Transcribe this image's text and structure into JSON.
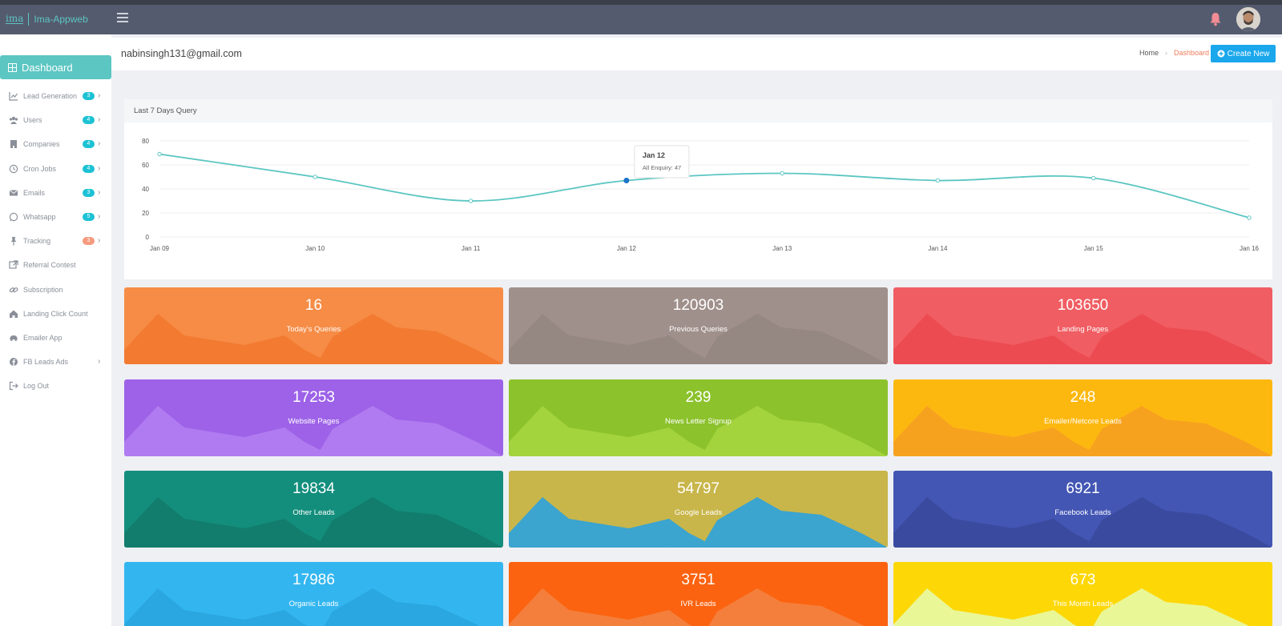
{
  "app": {
    "logo_mark": "ima",
    "name": "Ima-Appweb"
  },
  "header": {
    "icons": [
      "menu-icon",
      "bell-icon",
      "avatar"
    ]
  },
  "sidebar": {
    "dashboard_label": "Dashboard",
    "items": [
      {
        "label": "Lead Generation",
        "icon": "chart-icon",
        "badge": "3",
        "chevron": true
      },
      {
        "label": "Users",
        "icon": "users-icon",
        "badge": "4",
        "chevron": true
      },
      {
        "label": "Companies",
        "icon": "building-icon",
        "badge": "4",
        "chevron": true
      },
      {
        "label": "Cron Jobs",
        "icon": "clock-icon",
        "badge": "4",
        "chevron": true
      },
      {
        "label": "Emails",
        "icon": "envelope-icon",
        "badge": "3",
        "chevron": true
      },
      {
        "label": "Whatsapp",
        "icon": "whatsapp-icon",
        "badge": "5",
        "chevron": true
      },
      {
        "label": "Tracking",
        "icon": "pin-icon",
        "badge": "3",
        "badge_color": "orange",
        "chevron": true
      },
      {
        "label": "Referral Contest",
        "icon": "external-link-icon",
        "badge": "",
        "chevron": false
      },
      {
        "label": "Subscription",
        "icon": "link-icon",
        "badge": "",
        "chevron": false
      },
      {
        "label": "Landing Click Count",
        "icon": "home-icon",
        "badge": "",
        "chevron": false
      },
      {
        "label": "Emailer App",
        "icon": "car-icon",
        "badge": "",
        "chevron": false
      },
      {
        "label": "FB Leads Ads",
        "icon": "facebook-icon",
        "badge": "",
        "chevron": true
      },
      {
        "label": "Log Out",
        "icon": "logout-icon",
        "badge": "",
        "chevron": false
      }
    ]
  },
  "page": {
    "user_email": "nabinsingh131@gmail.com",
    "breadcrumb": {
      "home": "Home",
      "current": "Dashboard"
    },
    "create_label": "Create New"
  },
  "chart_card": {
    "title": "Last 7 Days Query"
  },
  "chart_data": {
    "type": "line",
    "categories": [
      "Jan 09",
      "Jan 10",
      "Jan 11",
      "Jan 12",
      "Jan 13",
      "Jan 14",
      "Jan 15",
      "Jan 16"
    ],
    "series": [
      {
        "name": "All Enquiry",
        "values": [
          69,
          50,
          30,
          47,
          53,
          47,
          49,
          16
        ]
      }
    ],
    "ylim": [
      0,
      80
    ],
    "yticks": [
      0,
      20,
      40,
      60,
      80
    ],
    "grid": true,
    "line_color": "#5cc6c2",
    "tooltip": {
      "title": "Jan 12",
      "text": "All Enquiry: 47"
    }
  },
  "stats": [
    {
      "value": "16",
      "label": "Today's Queries",
      "color": "#f68c45",
      "shade": "#f37a31"
    },
    {
      "value": "120903",
      "label": "Previous Queries",
      "color": "#a0908b",
      "shade": "#958781"
    },
    {
      "value": "103650",
      "label": "Landing Pages",
      "color": "#f05d62",
      "shade": "#ec4b51"
    },
    {
      "value": "17253",
      "label": "Website Pages",
      "color": "#9d62e8",
      "shade": "#b07bf0"
    },
    {
      "value": "239",
      "label": "News Letter Signup",
      "color": "#8cc22c",
      "shade": "#a3d33d"
    },
    {
      "value": "248",
      "label": "Emailer/Netcore Leads",
      "color": "#fdb810",
      "shade": "#f7a21f"
    },
    {
      "value": "19834",
      "label": "Other Leads",
      "color": "#138e7d",
      "shade": "#127d6c"
    },
    {
      "value": "54797",
      "label": "Google Leads",
      "color": "#c8b64a",
      "shade": "#3ba4cf"
    },
    {
      "value": "6921",
      "label": "Facebook Leads",
      "color": "#4356b4",
      "shade": "#3a4a9e"
    },
    {
      "value": "17986",
      "label": "Organic Leads",
      "color": "#33b6ef",
      "shade": "#2aa6e0"
    },
    {
      "value": "3751",
      "label": "IVR Leads",
      "color": "#fb6310",
      "shade": "#f47f3c"
    },
    {
      "value": "673",
      "label": "This Month Leads",
      "color": "#fdd706",
      "shade": "#eaf797"
    }
  ]
}
